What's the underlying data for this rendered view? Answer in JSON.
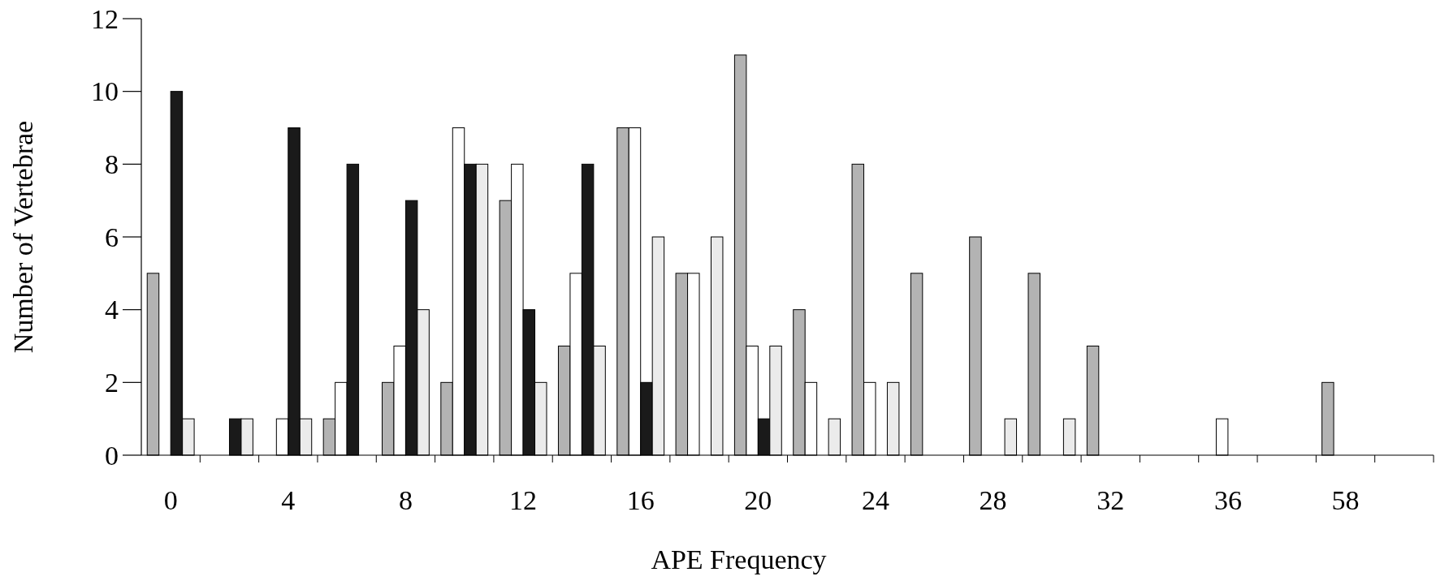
{
  "chart_data": {
    "type": "bar",
    "xlabel": "APE Frequency",
    "ylabel": "Number of Vertebrae",
    "categories": [
      "0",
      null,
      "4",
      null,
      "8",
      null,
      "12",
      null,
      "16",
      null,
      "20",
      null,
      "24",
      null,
      "28",
      null,
      "32",
      null,
      "36",
      null,
      "58",
      null
    ],
    "series": [
      {
        "color": "#b3b3b3",
        "values": [
          5,
          0,
          0,
          1,
          2,
          2,
          7,
          3,
          9,
          5,
          11,
          4,
          8,
          5,
          6,
          5,
          3,
          0,
          0,
          0,
          2,
          0
        ]
      },
      {
        "color": "#ffffff",
        "values": [
          0,
          0,
          1,
          2,
          3,
          9,
          8,
          5,
          9,
          5,
          3,
          2,
          2,
          0,
          0,
          0,
          0,
          0,
          1,
          0,
          0,
          0
        ]
      },
      {
        "color": "#1a1a1a",
        "values": [
          10,
          1,
          9,
          8,
          7,
          8,
          4,
          8,
          2,
          0,
          1,
          0,
          0,
          0,
          0,
          0,
          0,
          0,
          0,
          0,
          0,
          0
        ]
      },
      {
        "color": "#ebebeb",
        "values": [
          1,
          1,
          1,
          0,
          4,
          8,
          2,
          3,
          6,
          6,
          3,
          1,
          2,
          0,
          1,
          1,
          0,
          0,
          0,
          0,
          0,
          0
        ]
      }
    ],
    "ylim": [
      0,
      12
    ],
    "yticks": [
      0,
      2,
      4,
      6,
      8,
      10,
      12
    ],
    "grid": false
  }
}
